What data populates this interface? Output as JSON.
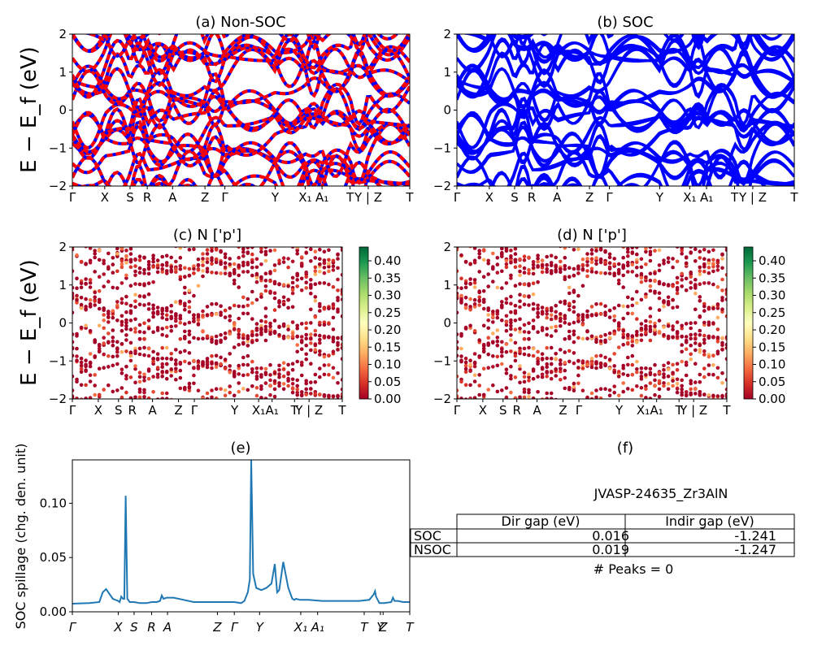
{
  "panels": {
    "a": {
      "title": "(a) Non-SOC"
    },
    "b": {
      "title": "(b) SOC"
    },
    "c": {
      "title": "(c)  N ['p']"
    },
    "d": {
      "title": "(d) N ['p']"
    },
    "e": {
      "title": "(e)"
    },
    "f": {
      "title": "(f)"
    }
  },
  "band_ylabel": "E − E_f (eV)",
  "kpath_labels": [
    "Γ",
    "X",
    "S",
    "R",
    "A",
    "Z",
    "Γ",
    "Y",
    "X₁",
    "A₁",
    "T",
    "Y | Z",
    "T"
  ],
  "kpath_positions": [
    0,
    0.096,
    0.171,
    0.222,
    0.297,
    0.393,
    0.452,
    0.601,
    0.69,
    0.74,
    0.823,
    0.877,
    1.0
  ],
  "colorbar": {
    "ticks": [
      "0.00",
      "0.05",
      "0.10",
      "0.15",
      "0.20",
      "0.25",
      "0.30",
      "0.35",
      "0.40"
    ],
    "max": 0.44,
    "colormap": "RdYlGn"
  },
  "colors": {
    "nonsoc_up": "#ff0000",
    "nonsoc_dn": "#0000ff",
    "soc": "#0000ff",
    "spillage": "#1f77b4"
  },
  "spillage": {
    "ylabel": "SOC spillage (chg. den. unit)",
    "yticks": [
      "0.00",
      "0.05",
      "0.10"
    ],
    "xtick_labels": [
      "Γ",
      "X",
      "S",
      "R",
      "A",
      "Z",
      "Γ",
      "Y",
      "X₁",
      "A₁",
      "T",
      "Y",
      "Z",
      "T"
    ],
    "xtick_positions": [
      0,
      0.136,
      0.183,
      0.235,
      0.282,
      0.43,
      0.48,
      0.555,
      0.677,
      0.727,
      0.865,
      0.913,
      0.921,
      1.0
    ]
  },
  "info": {
    "material": "JVASP-24635_Zr3AlN",
    "col_headers": [
      "Dir gap (eV)",
      "Indir gap (eV)"
    ],
    "rows": [
      {
        "label": "SOC",
        "dir": "0.016",
        "indir": "-1.241"
      },
      {
        "label": "NSOC",
        "dir": "0.019",
        "indir": "-1.247"
      }
    ],
    "peaks": "# Peaks = 0"
  },
  "chart_data": [
    {
      "type": "line",
      "title": "(a) Non-SOC",
      "ylabel": "E − E_f (eV)",
      "ylim": [
        -2,
        2
      ],
      "series": [
        {
          "name": "",
          "style": "red/blue dashed bands"
        }
      ]
    },
    {
      "type": "line",
      "title": "(b) SOC",
      "ylim": [
        -2,
        2
      ],
      "series": [
        {
          "name": "",
          "style": "blue bands"
        }
      ]
    },
    {
      "type": "scatter",
      "title": "(c)  N ['p']",
      "ylabel": "E − E_f (eV)",
      "ylim": [
        -2,
        2
      ],
      "colorbar_range": [
        0,
        0.44
      ]
    },
    {
      "type": "scatter",
      "title": "(d) N ['p']",
      "ylim": [
        -2,
        2
      ],
      "colorbar_range": [
        0,
        0.44
      ]
    },
    {
      "type": "line",
      "title": "(e)",
      "ylabel": "SOC spillage (chg. den. unit)",
      "ylim": [
        0,
        0.14
      ],
      "x": [
        0,
        0.05,
        0.08,
        0.09,
        0.1,
        0.12,
        0.136,
        0.14,
        0.145,
        0.15,
        0.154,
        0.158,
        0.163,
        0.17,
        0.183,
        0.2,
        0.22,
        0.235,
        0.25,
        0.26,
        0.265,
        0.27,
        0.28,
        0.3,
        0.33,
        0.36,
        0.4,
        0.44,
        0.48,
        0.5,
        0.51,
        0.52,
        0.526,
        0.53,
        0.536,
        0.545,
        0.56,
        0.575,
        0.59,
        0.6,
        0.607,
        0.613,
        0.625,
        0.64,
        0.652,
        0.658,
        0.663,
        0.675,
        0.7,
        0.74,
        0.8,
        0.85,
        0.88,
        0.893,
        0.897,
        0.9,
        0.91,
        0.925,
        0.945,
        0.95,
        0.955,
        0.965,
        0.98,
        1.0
      ],
      "y": [
        0.0075,
        0.008,
        0.009,
        0.018,
        0.021,
        0.012,
        0.01,
        0.009,
        0.014,
        0.012,
        0.012,
        0.107,
        0.012,
        0.009,
        0.009,
        0.008,
        0.008,
        0.009,
        0.009,
        0.01,
        0.015,
        0.012,
        0.013,
        0.013,
        0.011,
        0.009,
        0.009,
        0.009,
        0.009,
        0.008,
        0.01,
        0.018,
        0.03,
        0.14,
        0.035,
        0.022,
        0.02,
        0.022,
        0.026,
        0.044,
        0.018,
        0.02,
        0.046,
        0.022,
        0.012,
        0.011,
        0.012,
        0.011,
        0.011,
        0.01,
        0.01,
        0.01,
        0.011,
        0.016,
        0.019,
        0.014,
        0.008,
        0.008,
        0.009,
        0.013,
        0.01,
        0.01,
        0.009,
        0.009
      ]
    }
  ]
}
